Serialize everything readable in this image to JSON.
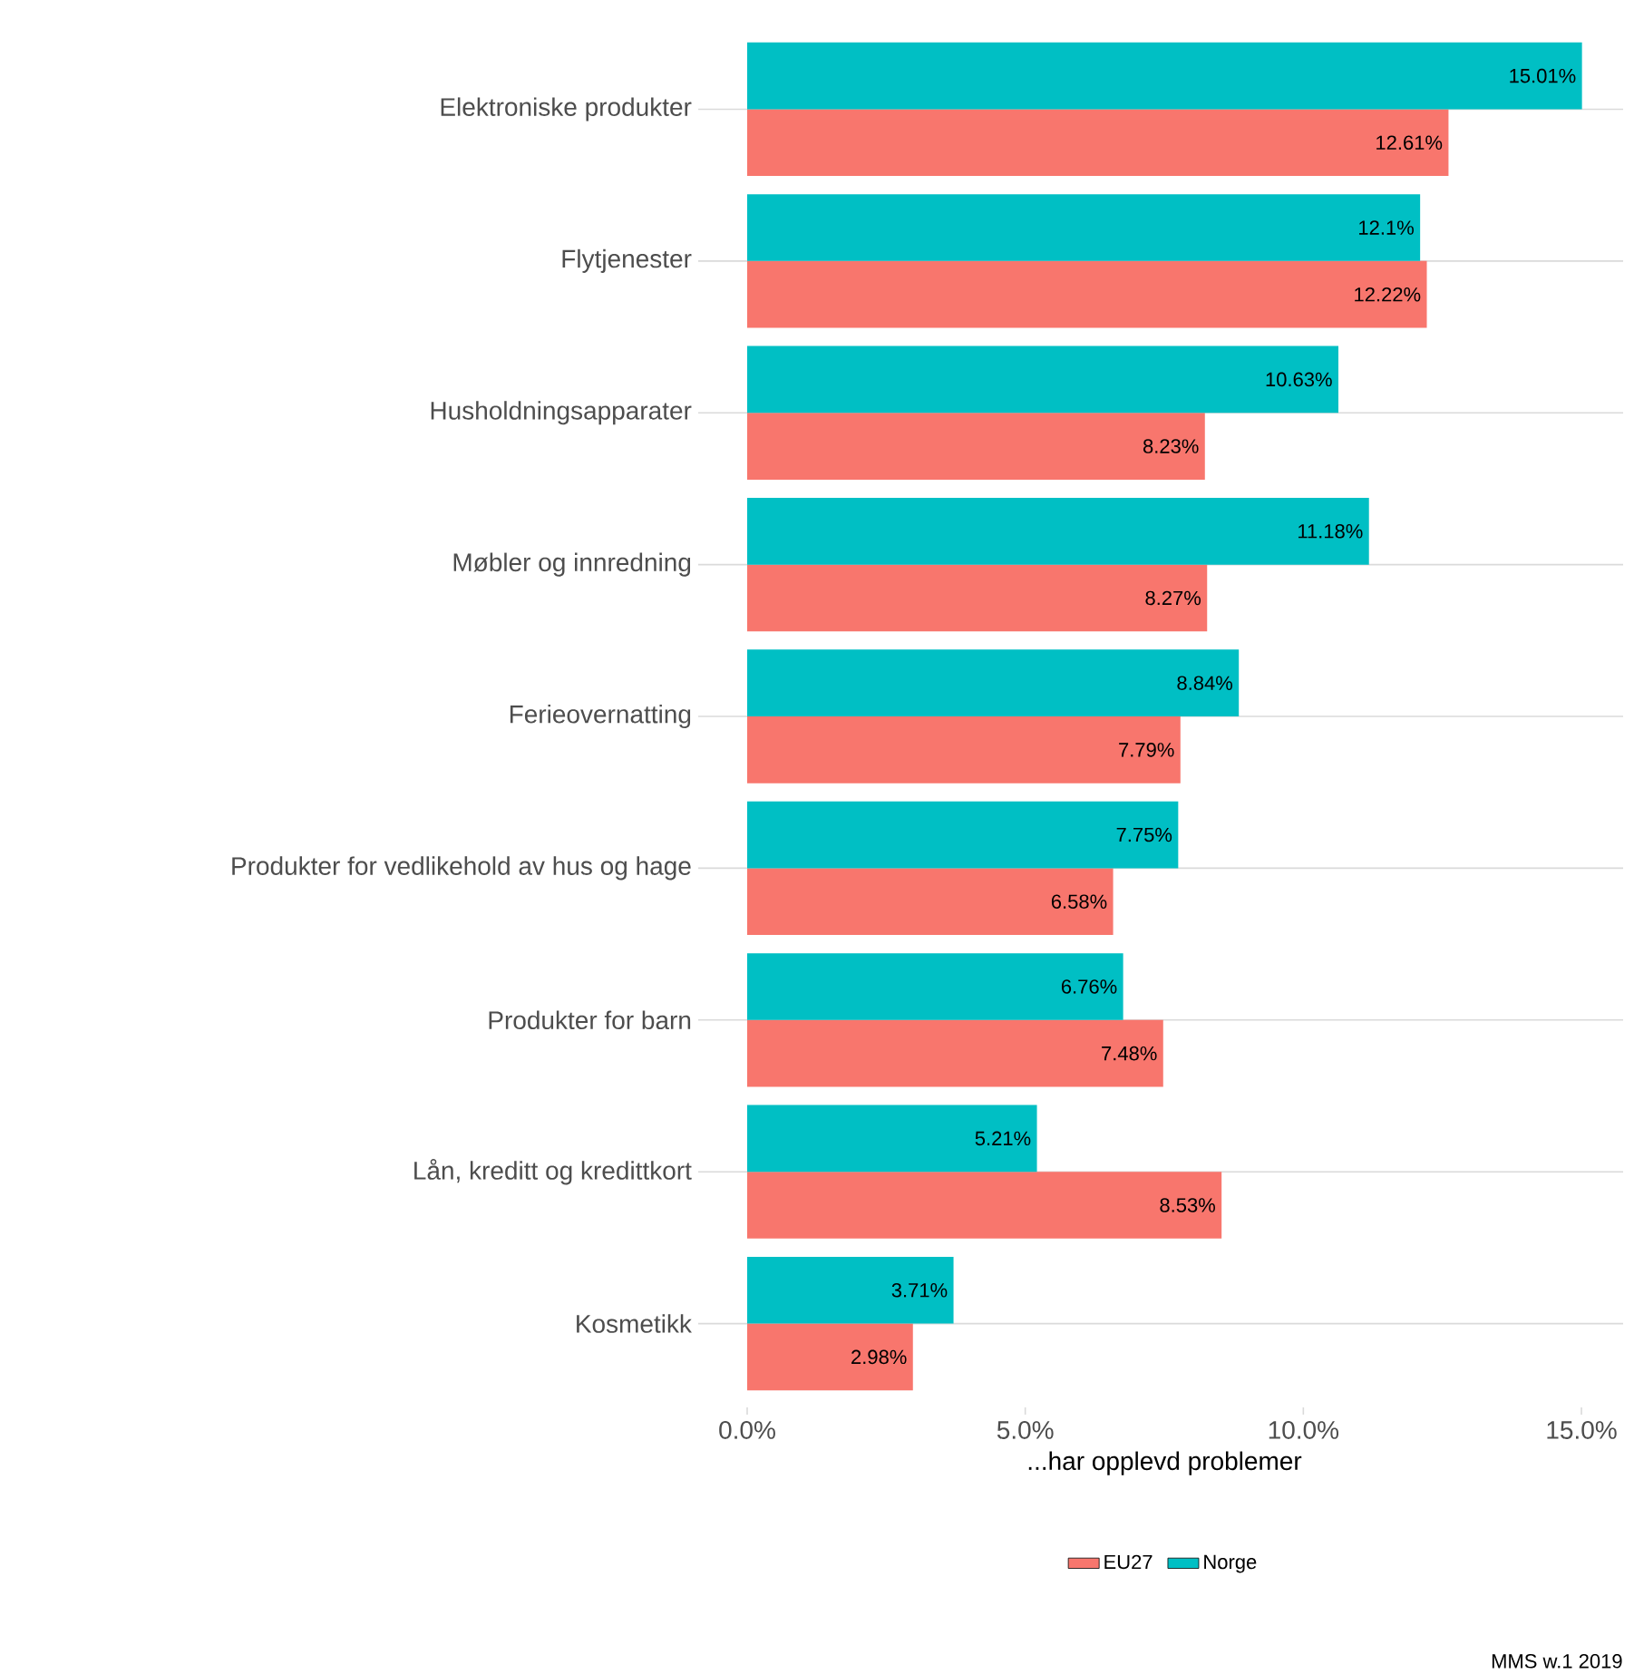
{
  "chart_data": {
    "type": "bar",
    "orientation": "horizontal",
    "categories": [
      "Elektroniske produkter",
      "Flytjenester",
      "Husholdningsapparater",
      "Møbler og innredning",
      "Ferieovernatting",
      "Produkter for vedlikehold av hus og hage",
      "Produkter for barn",
      "Lån, kreditt og kredittkort",
      "Kosmetikk"
    ],
    "series": [
      {
        "name": "EU27",
        "color": "#f8766d",
        "values": [
          12.61,
          12.22,
          8.23,
          8.27,
          7.79,
          6.58,
          7.48,
          8.53,
          2.98
        ],
        "value_labels": [
          "12.61%",
          "12.22%",
          "8.23%",
          "8.27%",
          "7.79%",
          "6.58%",
          "7.48%",
          "8.53%",
          "2.98%"
        ]
      },
      {
        "name": "Norge",
        "color": "#00bfc4",
        "values": [
          15.01,
          12.1,
          10.63,
          11.18,
          8.84,
          7.75,
          6.76,
          5.21,
          3.71
        ],
        "value_labels": [
          "15.01%",
          "12.1%",
          "10.63%",
          "11.18%",
          "8.84%",
          "7.75%",
          "6.76%",
          "5.21%",
          "3.71%"
        ]
      }
    ],
    "xlim": [
      -0.75,
      15.75
    ],
    "xticks": [
      {
        "value": 0,
        "label": "0.0%"
      },
      {
        "value": 5,
        "label": "5.0%"
      },
      {
        "value": 10,
        "label": "10.0%"
      },
      {
        "value": 15,
        "label": "15.0%"
      }
    ],
    "xlabel": "...har opplevd problemer",
    "grid": "y",
    "legend": "bottom",
    "annotations": [
      "MMS w.1 2019"
    ]
  }
}
